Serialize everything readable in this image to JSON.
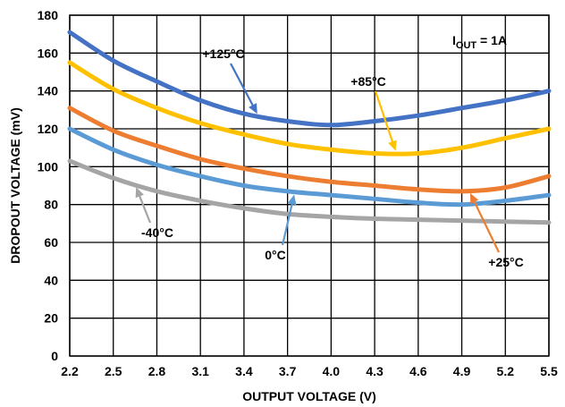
{
  "chart_data": {
    "type": "line",
    "xlabel": "OUTPUT VOLTAGE (V)",
    "ylabel": "DROPOUT VOLTAGE (mV)",
    "xlim": [
      2.2,
      5.5
    ],
    "ylim": [
      0,
      180
    ],
    "x_ticks": [
      "2.2",
      "2.5",
      "2.8",
      "3.1",
      "3.4",
      "3.7",
      "4.0",
      "4.3",
      "4.6",
      "4.9",
      "5.2",
      "5.5"
    ],
    "y_ticks": [
      "0",
      "20",
      "40",
      "60",
      "80",
      "100",
      "120",
      "140",
      "160",
      "180"
    ],
    "grid": true,
    "condition": {
      "main": "I",
      "sub": "OUT",
      "rest": " = 1A"
    },
    "series": [
      {
        "name": "+125°C",
        "color": "#4472C4",
        "x": [
          2.2,
          2.5,
          2.8,
          3.1,
          3.4,
          3.7,
          4.0,
          4.3,
          4.6,
          4.9,
          5.2,
          5.5
        ],
        "y": [
          171,
          156,
          145,
          135,
          128,
          124,
          122,
          124,
          127,
          131,
          135,
          140
        ]
      },
      {
        "name": "+85°C",
        "color": "#FFC000",
        "x": [
          2.2,
          2.5,
          2.8,
          3.1,
          3.4,
          3.7,
          4.0,
          4.3,
          4.6,
          4.9,
          5.2,
          5.5
        ],
        "y": [
          155,
          141,
          131,
          123,
          117,
          112,
          109,
          107,
          107,
          110,
          115,
          120
        ]
      },
      {
        "name": "+25°C",
        "color": "#ED7D31",
        "x": [
          2.2,
          2.5,
          2.8,
          3.1,
          3.4,
          3.7,
          4.0,
          4.3,
          4.6,
          4.9,
          5.2,
          5.5
        ],
        "y": [
          131,
          119,
          111,
          104,
          99,
          95,
          92,
          90,
          88,
          87,
          89,
          95
        ]
      },
      {
        "name": "0°C",
        "color": "#5B9BD5",
        "x": [
          2.2,
          2.5,
          2.8,
          3.1,
          3.4,
          3.7,
          4.0,
          4.3,
          4.6,
          4.9,
          5.2,
          5.5
        ],
        "y": [
          120,
          109,
          101,
          95,
          90,
          87,
          85,
          83,
          81,
          80,
          82,
          85
        ]
      },
      {
        "name": "-40°C",
        "color": "#A5A5A5",
        "x": [
          2.2,
          2.5,
          2.8,
          3.1,
          3.4,
          3.7,
          4.0,
          4.3,
          4.6,
          4.9,
          5.2,
          5.5
        ],
        "y": [
          103,
          94,
          87,
          82,
          78,
          75,
          73.5,
          72.5,
          72,
          71.5,
          71,
          70.5
        ]
      }
    ],
    "annotations": [
      {
        "text": "+125°C",
        "series": 0,
        "x": 3.5
      },
      {
        "text": "+85°C",
        "series": 1,
        "x": 4.45
      },
      {
        "text": "+25°C",
        "series": 2,
        "x": 4.95
      },
      {
        "text": "0°C",
        "series": 3,
        "x": 3.75
      },
      {
        "text": "-40°C",
        "series": 4,
        "x": 2.65
      }
    ]
  }
}
